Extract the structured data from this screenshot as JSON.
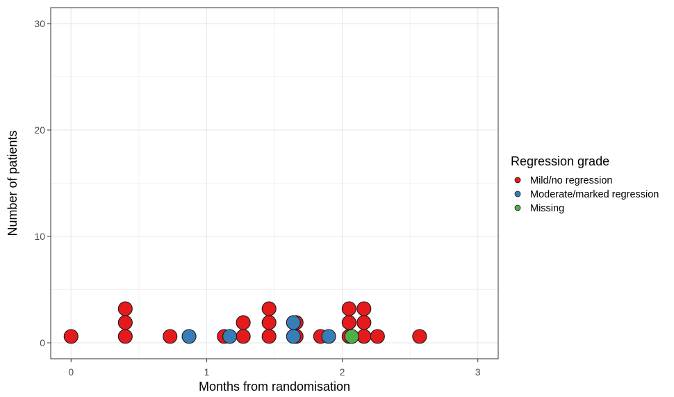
{
  "chart_data": {
    "type": "scatter",
    "title": "",
    "xlabel": "Months from randomisation",
    "ylabel": "Number of patients",
    "xlim": [
      -0.15,
      3.15
    ],
    "ylim": [
      -1.5,
      31.5
    ],
    "xticks": [
      0,
      1,
      2,
      3
    ],
    "xtick_labels": [
      "0",
      "1",
      "2",
      "3"
    ],
    "yticks": [
      0,
      10,
      20,
      30
    ],
    "ytick_labels": [
      "0",
      "10",
      "20",
      "30"
    ],
    "grid": true,
    "legend": {
      "title": "Regression grade",
      "position": "right",
      "entries": [
        {
          "label": "Mild/no regression",
          "color": "#e41a1c"
        },
        {
          "label": "Moderate/marked regression",
          "color": "#377eb8"
        },
        {
          "label": "Missing",
          "color": "#4daf4a"
        }
      ]
    },
    "series": [
      {
        "name": "Mild/no regression",
        "color": "#e41a1c",
        "points": [
          {
            "x": 0.0,
            "y": 0.6
          },
          {
            "x": 0.4,
            "y": 0.6
          },
          {
            "x": 0.4,
            "y": 1.9
          },
          {
            "x": 0.4,
            "y": 3.2
          },
          {
            "x": 0.73,
            "y": 0.6
          },
          {
            "x": 1.13,
            "y": 0.6
          },
          {
            "x": 1.27,
            "y": 0.6
          },
          {
            "x": 1.27,
            "y": 1.9
          },
          {
            "x": 1.46,
            "y": 0.6
          },
          {
            "x": 1.46,
            "y": 1.9
          },
          {
            "x": 1.46,
            "y": 3.2
          },
          {
            "x": 1.66,
            "y": 0.6
          },
          {
            "x": 1.66,
            "y": 1.9
          },
          {
            "x": 1.84,
            "y": 0.6
          },
          {
            "x": 2.05,
            "y": 0.6
          },
          {
            "x": 2.05,
            "y": 1.9
          },
          {
            "x": 2.05,
            "y": 3.2
          },
          {
            "x": 2.16,
            "y": 0.6
          },
          {
            "x": 2.16,
            "y": 1.9
          },
          {
            "x": 2.16,
            "y": 3.2
          },
          {
            "x": 2.26,
            "y": 0.6
          },
          {
            "x": 2.57,
            "y": 0.6
          }
        ]
      },
      {
        "name": "Moderate/marked regression",
        "color": "#377eb8",
        "points": [
          {
            "x": 0.87,
            "y": 0.6
          },
          {
            "x": 1.17,
            "y": 0.6
          },
          {
            "x": 1.64,
            "y": 0.6
          },
          {
            "x": 1.64,
            "y": 1.9
          },
          {
            "x": 1.9,
            "y": 0.6
          }
        ]
      },
      {
        "name": "Missing",
        "color": "#4daf4a",
        "points": [
          {
            "x": 2.07,
            "y": 0.6
          }
        ]
      }
    ]
  }
}
